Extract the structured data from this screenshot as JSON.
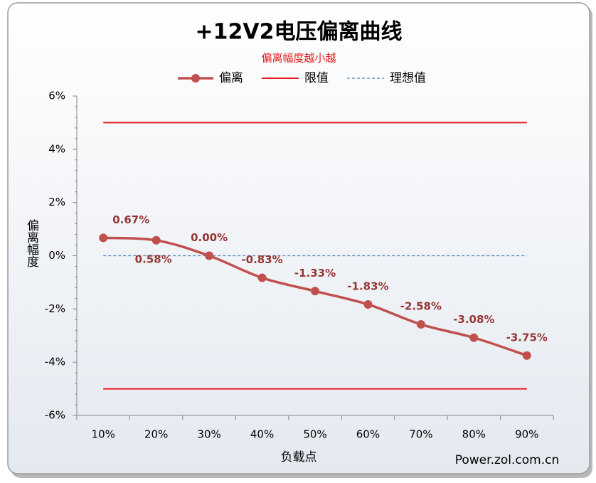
{
  "chart_data": {
    "type": "line",
    "title": "+12V2电压偏离曲线",
    "subtitle": "偏离幅度越小越",
    "y_label": "偏离幅度",
    "x_label": "负载点",
    "watermark": "Power.zol.com.cn",
    "categories": [
      "10%",
      "20%",
      "30%",
      "40%",
      "50%",
      "60%",
      "70%",
      "80%",
      "90%"
    ],
    "series": [
      {
        "name": "偏离",
        "color": "#c0504d",
        "values": [
          0.67,
          0.58,
          0.0,
          -0.83,
          -1.33,
          -1.83,
          -2.58,
          -3.08,
          -3.75
        ],
        "value_labels": [
          "0.67%",
          "0.58%",
          "0.00%",
          "-0.83%",
          "-1.33%",
          "-1.83%",
          "-2.58%",
          "-3.08%",
          "-3.75%"
        ]
      }
    ],
    "reference_lines": [
      {
        "name": "限值",
        "color": "#e41a1c",
        "values": [
          5,
          -5
        ],
        "dashed": false
      },
      {
        "name": "理想值",
        "color": "#4f81bd",
        "values": [
          0
        ],
        "dashed": true
      }
    ],
    "ylim": [
      -6,
      6
    ],
    "yticks": [
      {
        "value": -6,
        "label": "-6%"
      },
      {
        "value": -4,
        "label": "-4%"
      },
      {
        "value": -2,
        "label": "-2%"
      },
      {
        "value": 0,
        "label": "0%"
      },
      {
        "value": 2,
        "label": "2%"
      },
      {
        "value": 4,
        "label": "4%"
      },
      {
        "value": 6,
        "label": "6%"
      }
    ],
    "grid": false,
    "legend": "top"
  }
}
